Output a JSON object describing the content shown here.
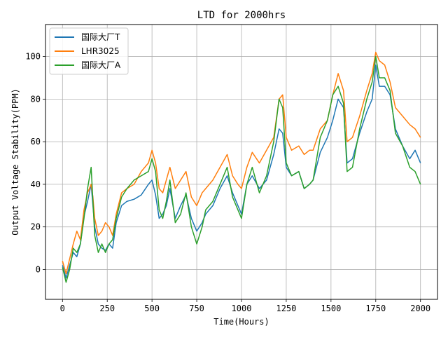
{
  "chart_data": {
    "type": "line",
    "title": "LTD for 2000hrs",
    "xlabel": "Time(Hours)",
    "ylabel": "Output Voltage Stability(PPM)",
    "xlim": [
      -95,
      2095
    ],
    "ylim": [
      -14,
      115
    ],
    "xticks": [
      0,
      250,
      500,
      750,
      1000,
      1250,
      1500,
      1750,
      2000
    ],
    "yticks": [
      0,
      20,
      40,
      60,
      80,
      100
    ],
    "grid": true,
    "legend_position": "top-left",
    "x": [
      0,
      20,
      40,
      60,
      80,
      100,
      120,
      140,
      160,
      170,
      180,
      200,
      220,
      240,
      260,
      280,
      300,
      330,
      360,
      400,
      440,
      480,
      500,
      520,
      540,
      560,
      580,
      600,
      630,
      660,
      690,
      720,
      750,
      780,
      800,
      840,
      880,
      920,
      950,
      980,
      1000,
      1030,
      1060,
      1100,
      1140,
      1180,
      1210,
      1230,
      1250,
      1280,
      1320,
      1350,
      1380,
      1400,
      1440,
      1480,
      1510,
      1540,
      1570,
      1590,
      1620,
      1660,
      1700,
      1730,
      1750,
      1770,
      1800,
      1830,
      1860,
      1900,
      1940,
      1970,
      2000
    ],
    "series": [
      {
        "name": "国际大厂T",
        "color": "#1f77b4",
        "values": [
          2,
          -4,
          2,
          8,
          6,
          12,
          25,
          32,
          40,
          30,
          20,
          12,
          10,
          9,
          12,
          10,
          22,
          30,
          32,
          33,
          35,
          40,
          42,
          35,
          24,
          26,
          30,
          38,
          24,
          30,
          35,
          24,
          18,
          22,
          26,
          30,
          38,
          44,
          36,
          30,
          26,
          40,
          44,
          38,
          42,
          54,
          66,
          64,
          48,
          44,
          46,
          38,
          40,
          42,
          55,
          62,
          70,
          80,
          76,
          50,
          52,
          64,
          74,
          80,
          96,
          86,
          86,
          82,
          66,
          58,
          52,
          56,
          50
        ]
      },
      {
        "name": "LHR3025",
        "color": "#ff7f0e",
        "values": [
          4,
          -2,
          5,
          12,
          18,
          14,
          28,
          36,
          40,
          34,
          24,
          16,
          18,
          22,
          20,
          16,
          26,
          36,
          38,
          40,
          46,
          50,
          56,
          50,
          38,
          36,
          42,
          48,
          38,
          42,
          46,
          34,
          30,
          36,
          38,
          42,
          48,
          54,
          44,
          40,
          38,
          48,
          55,
          50,
          56,
          62,
          80,
          82,
          62,
          56,
          58,
          54,
          56,
          56,
          66,
          70,
          82,
          92,
          84,
          60,
          62,
          72,
          84,
          92,
          102,
          98,
          96,
          88,
          76,
          72,
          68,
          66,
          62
        ]
      },
      {
        "name": "国际大厂A",
        "color": "#2ca02c",
        "values": [
          1,
          -6,
          0,
          10,
          8,
          12,
          24,
          38,
          48,
          32,
          16,
          8,
          12,
          8,
          12,
          14,
          24,
          34,
          38,
          42,
          44,
          46,
          52,
          46,
          28,
          24,
          32,
          42,
          22,
          26,
          36,
          20,
          12,
          20,
          28,
          32,
          40,
          48,
          34,
          28,
          24,
          40,
          48,
          36,
          44,
          60,
          80,
          76,
          50,
          44,
          46,
          38,
          40,
          42,
          62,
          70,
          82,
          86,
          78,
          46,
          48,
          66,
          80,
          88,
          100,
          90,
          90,
          84,
          64,
          58,
          48,
          46,
          40
        ]
      }
    ]
  }
}
